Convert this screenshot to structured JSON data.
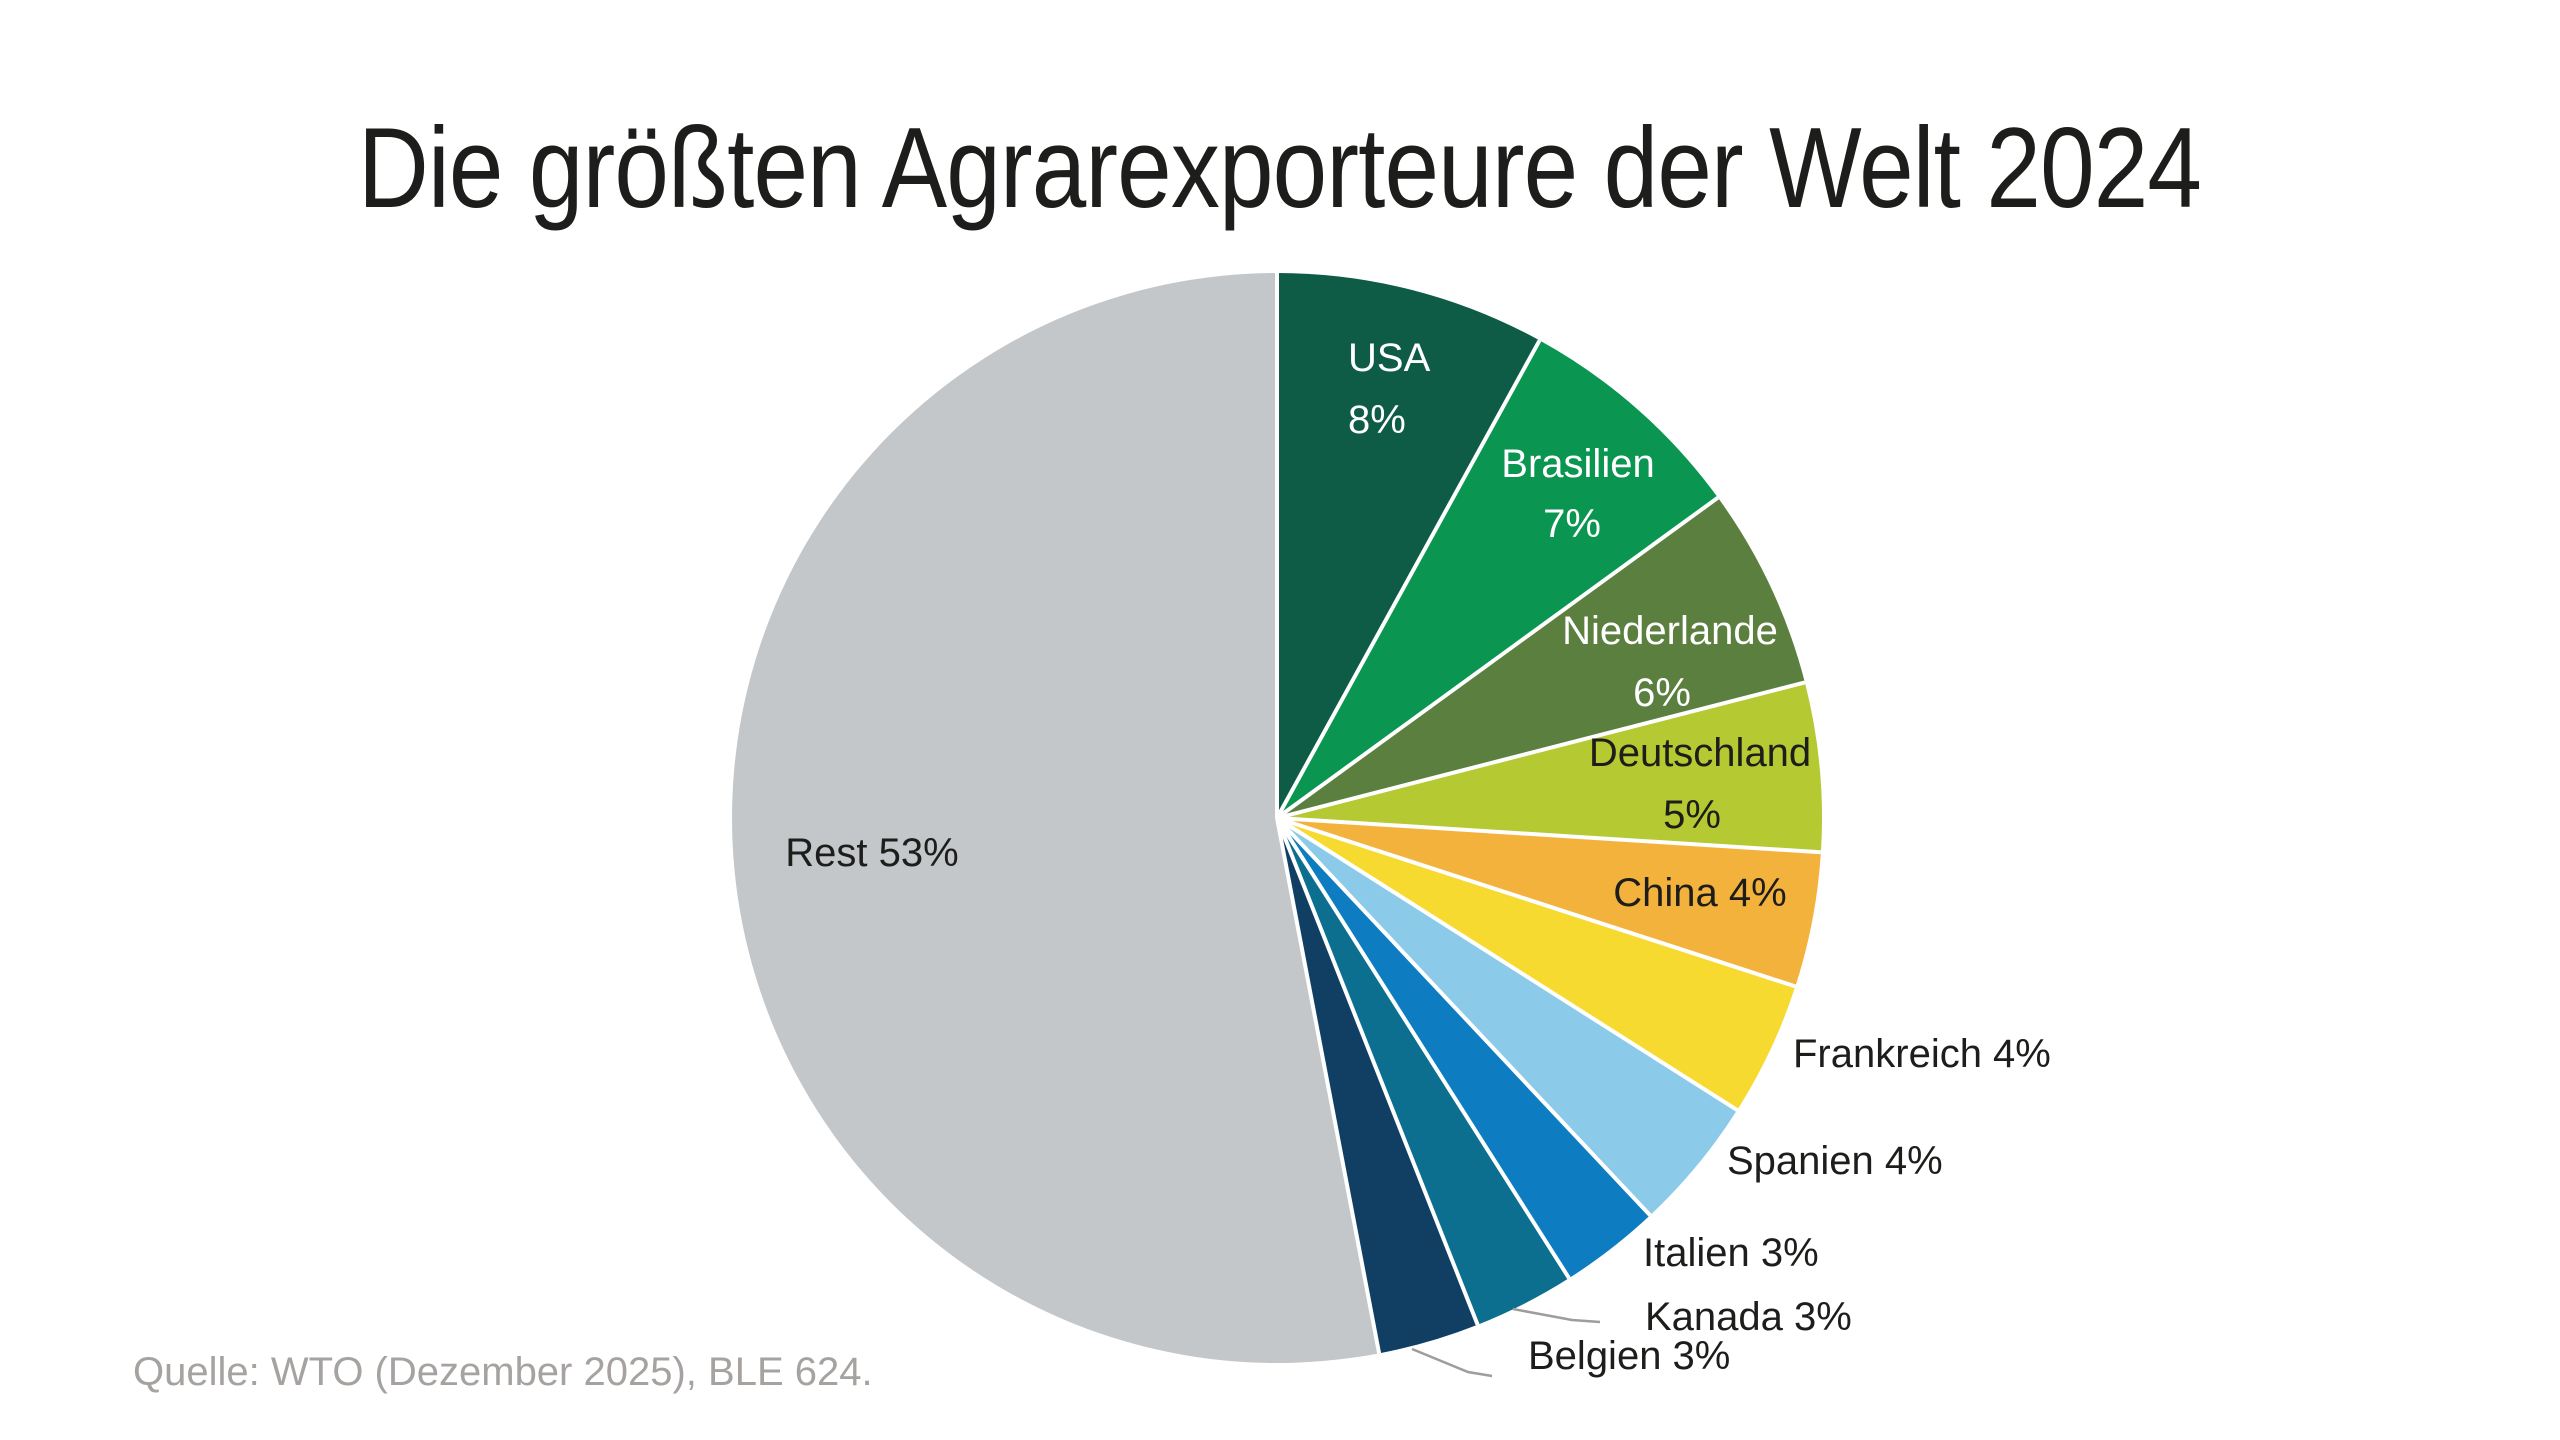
{
  "title": "Die größten Agrarexporteure der Welt 2024",
  "source": "Quelle: WTO (Dezember 2025), BLE 624.",
  "colors": {
    "background": "#ffffff",
    "title_text": "#1d1d1b",
    "label_text_dark": "#1d1d1b",
    "label_text_light": "#ffffff",
    "source_text": "#a6a2a0",
    "leader_line": "#9d9d9c",
    "separator": "#ffffff"
  },
  "chart_data": {
    "type": "pie",
    "title": "Die größten Agrarexporteure der Welt 2024",
    "unit": "%",
    "start_angle_deg": 0,
    "direction": "clockwise",
    "legend_position": "none",
    "grid": false,
    "categories": [
      "USA",
      "Brasilien",
      "Niederlande",
      "Deutschland",
      "China",
      "Frankreich",
      "Spanien",
      "Italien",
      "Kanada",
      "Belgien",
      "Rest"
    ],
    "values": [
      8,
      7,
      6,
      5,
      4,
      4,
      4,
      3,
      3,
      3,
      53
    ],
    "segments": [
      {
        "name": "USA",
        "percent": 8,
        "color": "#0f5c46",
        "label_lines": [
          "USA",
          "8%"
        ],
        "label_color": "#ffffff",
        "label_position": "inside",
        "leader_line": false
      },
      {
        "name": "Brasilien",
        "percent": 7,
        "color": "#0a9551",
        "label_lines": [
          "Brasilien",
          "7%"
        ],
        "label_color": "#ffffff",
        "label_position": "inside",
        "leader_line": false
      },
      {
        "name": "Niederlande",
        "percent": 6,
        "color": "#5b7f3f",
        "label_lines": [
          "Niederlande",
          "6%"
        ],
        "label_color": "#ffffff",
        "label_position": "inside",
        "leader_line": false
      },
      {
        "name": "Deutschland",
        "percent": 5,
        "color": "#b4c932",
        "label_lines": [
          "Deutschland",
          "5%"
        ],
        "label_color": "#1d1d1b",
        "label_position": "inside",
        "leader_line": false
      },
      {
        "name": "China",
        "percent": 4,
        "color": "#f3b23c",
        "label_lines": [
          "China 4%"
        ],
        "label_color": "#1d1d1b",
        "label_position": "inside",
        "leader_line": false
      },
      {
        "name": "Frankreich",
        "percent": 4,
        "color": "#f7da30",
        "label_lines": [
          "Frankreich 4%"
        ],
        "label_color": "#1d1d1b",
        "label_position": "outside",
        "leader_line": false
      },
      {
        "name": "Spanien",
        "percent": 4,
        "color": "#8ccae9",
        "label_lines": [
          "Spanien 4%"
        ],
        "label_color": "#1d1d1b",
        "label_position": "outside",
        "leader_line": false
      },
      {
        "name": "Italien",
        "percent": 3,
        "color": "#0d7cc1",
        "label_lines": [
          "Italien 3%"
        ],
        "label_color": "#1d1d1b",
        "label_position": "outside",
        "leader_line": false
      },
      {
        "name": "Kanada",
        "percent": 3,
        "color": "#0c6f90",
        "label_lines": [
          "Kanada 3%"
        ],
        "label_color": "#1d1d1b",
        "label_position": "outside",
        "leader_line": true
      },
      {
        "name": "Belgien",
        "percent": 3,
        "color": "#113f63",
        "label_lines": [
          "Belgien 3%"
        ],
        "label_color": "#1d1d1b",
        "label_position": "outside",
        "leader_line": true
      },
      {
        "name": "Rest",
        "percent": 53,
        "color": "#c3c7ca",
        "label_lines": [
          "Rest 53%"
        ],
        "label_color": "#1d1d1b",
        "label_position": "inside",
        "leader_line": false
      }
    ]
  }
}
